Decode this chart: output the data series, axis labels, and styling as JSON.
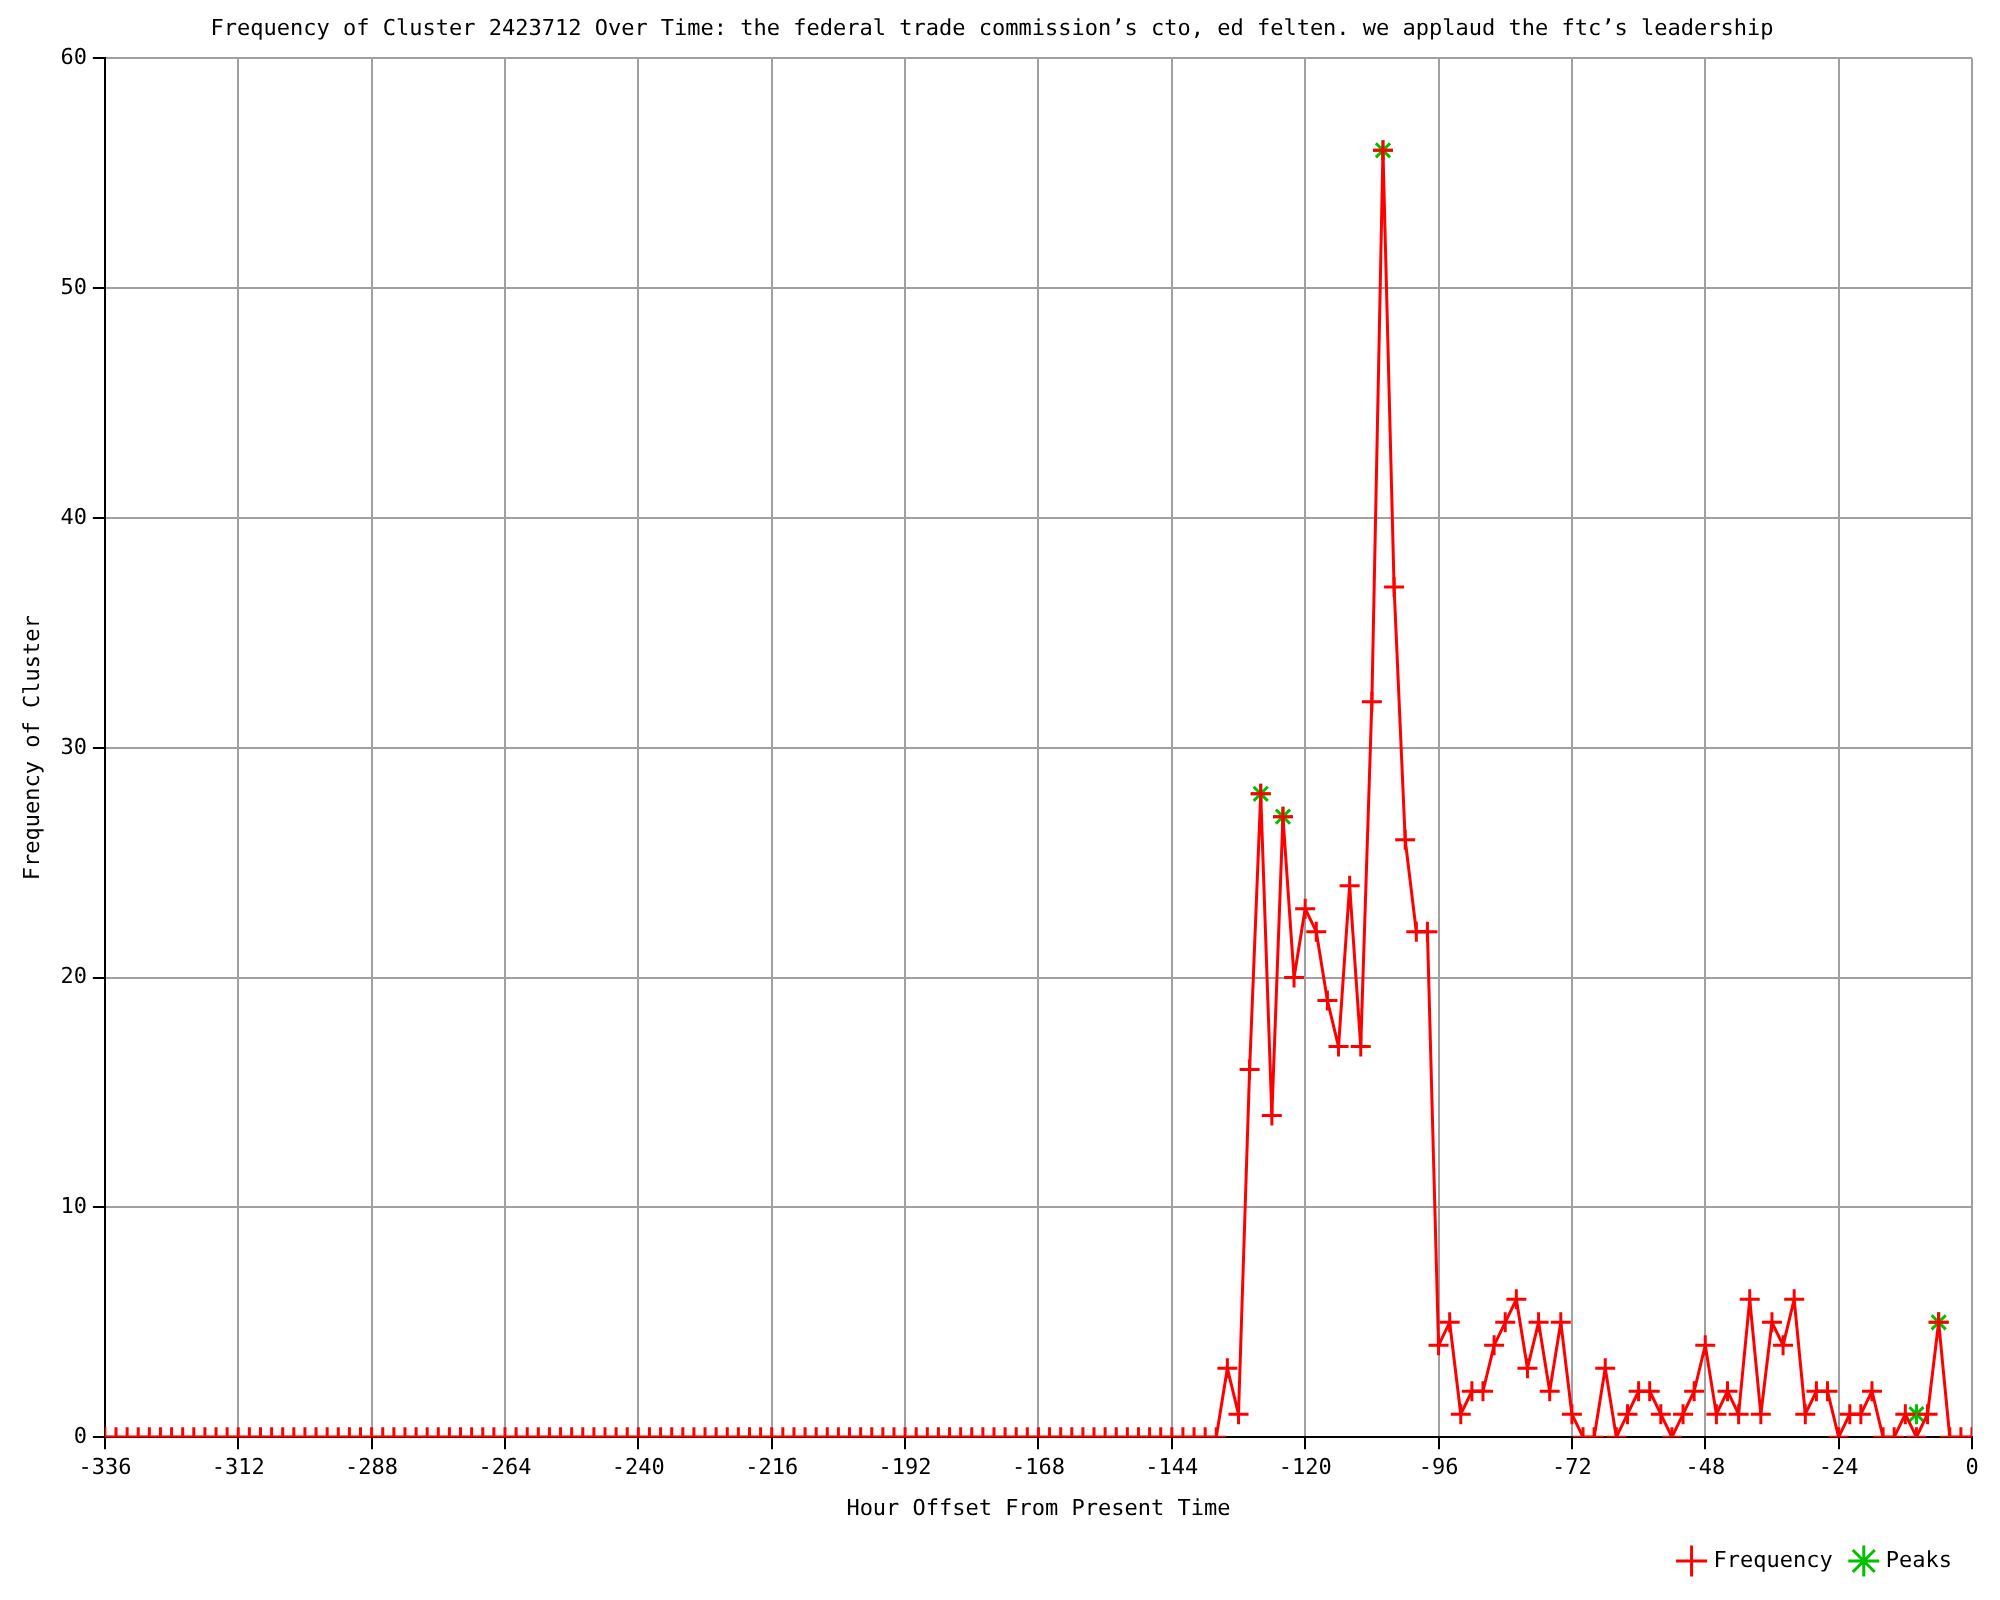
{
  "chart_data": {
    "type": "line",
    "title": "Frequency of Cluster 2423712 Over Time: the federal trade commission’s cto, ed felten. we applaud the ftc’s leadership",
    "xlabel": "Hour Offset From Present Time",
    "ylabel": "Frequency of Cluster",
    "xlim": [
      -336,
      0
    ],
    "xticks": [
      -336,
      -312,
      -288,
      -264,
      -240,
      -216,
      -192,
      -168,
      -144,
      -120,
      -96,
      -72,
      -48,
      -24,
      0
    ],
    "ylim": [
      0,
      60
    ],
    "yticks": [
      0,
      10,
      20,
      30,
      40,
      50,
      60
    ],
    "grid": true,
    "legend": "bottom right",
    "line_style": "solid",
    "series": [
      {
        "name": "Frequency",
        "type": "line",
        "color": "#ff0000",
        "marker": "cross",
        "x": [
          -336,
          -334,
          -332,
          -330,
          -328,
          -326,
          -324,
          -322,
          -320,
          -318,
          -316,
          -314,
          -312,
          -310,
          -308,
          -306,
          -304,
          -302,
          -300,
          -298,
          -296,
          -294,
          -292,
          -290,
          -288,
          -286,
          -284,
          -282,
          -280,
          -278,
          -276,
          -274,
          -272,
          -270,
          -268,
          -266,
          -264,
          -262,
          -260,
          -258,
          -256,
          -254,
          -252,
          -250,
          -248,
          -246,
          -244,
          -242,
          -240,
          -238,
          -236,
          -234,
          -232,
          -230,
          -228,
          -226,
          -224,
          -222,
          -220,
          -218,
          -216,
          -214,
          -212,
          -210,
          -208,
          -206,
          -204,
          -202,
          -200,
          -198,
          -196,
          -194,
          -192,
          -190,
          -188,
          -186,
          -184,
          -182,
          -180,
          -178,
          -176,
          -174,
          -172,
          -170,
          -168,
          -166,
          -164,
          -162,
          -160,
          -158,
          -156,
          -154,
          -152,
          -150,
          -148,
          -146,
          -144,
          -142,
          -140,
          -138,
          -136,
          -134,
          -132,
          -130,
          -128,
          -126,
          -124,
          -122,
          -120,
          -118,
          -116,
          -114,
          -112,
          -110,
          -108,
          -106,
          -104,
          -102,
          -100,
          -98,
          -96,
          -94,
          -92,
          -90,
          -88,
          -86,
          -84,
          -82,
          -80,
          -78,
          -76,
          -74,
          -72,
          -70,
          -68,
          -66,
          -64,
          -62,
          -60,
          -58,
          -56,
          -54,
          -52,
          -50,
          -48,
          -46,
          -44,
          -42,
          -40,
          -38,
          -36,
          -34,
          -32,
          -30,
          -28,
          -26,
          -24,
          -22,
          -20,
          -18,
          -16,
          -14,
          -12,
          -10,
          -8,
          -6,
          -4,
          -2,
          0
        ],
        "values": [
          0,
          0,
          0,
          0,
          0,
          0,
          0,
          0,
          0,
          0,
          0,
          0,
          0,
          0,
          0,
          0,
          0,
          0,
          0,
          0,
          0,
          0,
          0,
          0,
          0,
          0,
          0,
          0,
          0,
          0,
          0,
          0,
          0,
          0,
          0,
          0,
          0,
          0,
          0,
          0,
          0,
          0,
          0,
          0,
          0,
          0,
          0,
          0,
          0,
          0,
          0,
          0,
          0,
          0,
          0,
          0,
          0,
          0,
          0,
          0,
          0,
          0,
          0,
          0,
          0,
          0,
          0,
          0,
          0,
          0,
          0,
          0,
          0,
          0,
          0,
          0,
          0,
          0,
          0,
          0,
          0,
          0,
          0,
          0,
          0,
          0,
          0,
          0,
          0,
          0,
          0,
          0,
          0,
          0,
          0,
          0,
          0,
          0,
          0,
          0,
          0,
          3,
          1,
          16,
          28,
          14,
          27,
          20,
          23,
          22,
          19,
          17,
          24,
          17,
          32,
          56,
          37,
          26,
          22,
          22,
          4,
          5,
          1,
          2,
          2,
          4,
          5,
          6,
          3,
          5,
          2,
          5,
          1,
          0,
          0,
          3,
          0,
          1,
          2,
          2,
          1,
          0,
          1,
          2,
          4,
          1,
          2,
          1,
          6,
          1,
          5,
          4,
          6,
          1,
          2,
          2,
          0,
          1,
          1,
          2,
          0,
          0,
          1,
          0,
          1,
          5,
          0,
          0,
          0
        ]
      },
      {
        "name": "Peaks",
        "type": "scatter",
        "color": "#00c000",
        "marker": "cross",
        "x": [
          -128,
          -124,
          -106,
          -10,
          -6
        ],
        "values": [
          28,
          27,
          56,
          1,
          5
        ]
      }
    ]
  }
}
